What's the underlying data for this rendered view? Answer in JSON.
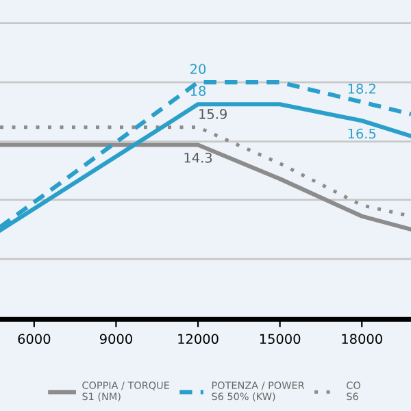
{
  "chart_data": {
    "type": "line",
    "x": [
      4750,
      12000,
      15000,
      18000,
      19800
    ],
    "xlim": [
      4750,
      19800
    ],
    "xticks": [
      6000,
      9000,
      12000,
      15000,
      18000
    ],
    "ylim": [
      -1.6,
      27.5
    ],
    "yticks": [
      {
        "value": 3.9,
        "label": null
      },
      {
        "value": 9.3,
        "label": null
      },
      {
        "value": 14.6,
        "label": null
      },
      {
        "value": 20,
        "label": null
      },
      {
        "value": 25.4,
        "label": null
      }
    ],
    "grid": "y",
    "legend": "bottom",
    "marker": "none",
    "series": [
      {
        "name": "COPPIA / TORQUE\nS1 (NM)",
        "color": "#8c8c8c",
        "line_style": "solid",
        "values": [
          14.3,
          14.3,
          11.2,
          7.8,
          6.6
        ],
        "value_labels": [
          null,
          "14.3",
          null,
          null,
          null
        ]
      },
      {
        "name": "POTENZA / POWER\nS6 50% (KW)",
        "color": "#2a9fc9",
        "line_style": "dashed",
        "values": [
          6.8,
          20,
          20,
          18.2,
          17.1
        ],
        "value_labels": [
          null,
          "20",
          null,
          "18.2",
          null
        ]
      },
      {
        "name": "CO\nS6",
        "color": "#8c8c8c",
        "line_style": "dotted",
        "values": [
          15.9,
          15.9,
          12.6,
          8.8,
          7.8
        ],
        "value_labels": [
          null,
          "15.9",
          null,
          null,
          null
        ]
      },
      {
        "color": "#2a9fc9",
        "line_style": "solid",
        "values": [
          6.5,
          18,
          18,
          16.5,
          15.1
        ],
        "value_labels": [
          null,
          "18",
          null,
          "16.5",
          null
        ]
      }
    ]
  }
}
